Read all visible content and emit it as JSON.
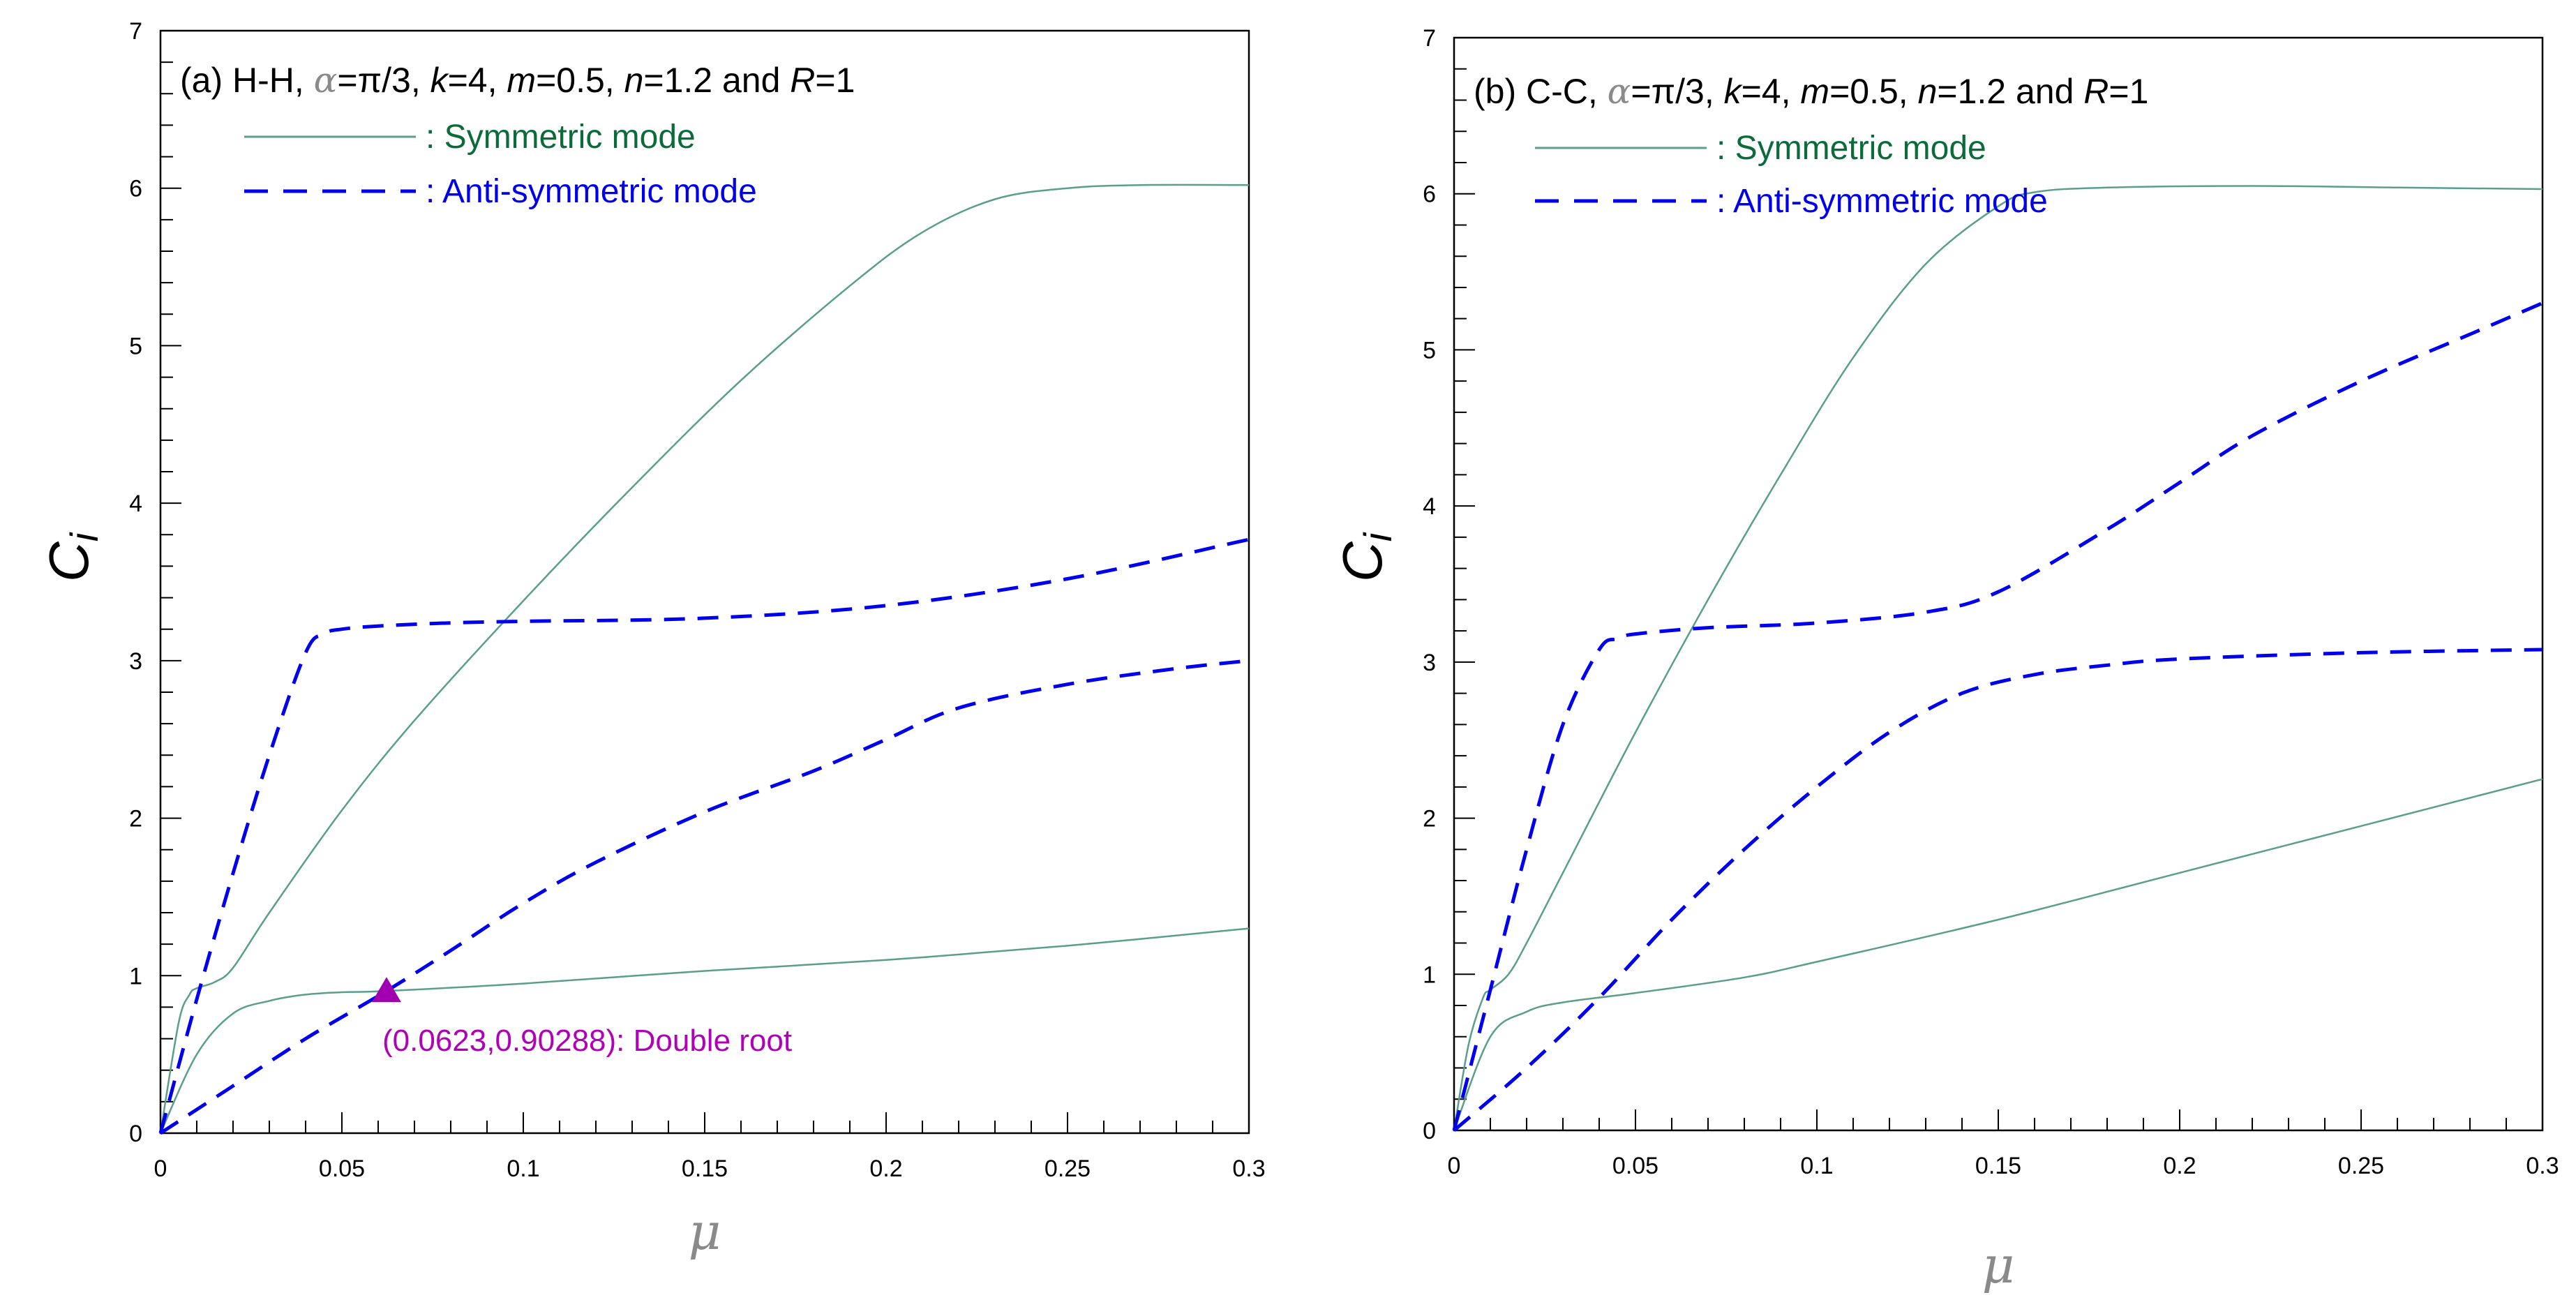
{
  "chart_data": [
    {
      "type": "line",
      "panel_label": "(a)",
      "boundary": "H-H",
      "title_parts": {
        "prefix": "(a) H-H, ",
        "alpha_sym": "α",
        "alpha_val": "=π/3, ",
        "k_sym": "k",
        "k_val": "=4, ",
        "m_sym": "m",
        "m_val": "=0.5, ",
        "n_sym": "n",
        "n_val": "=1.2 and ",
        "R_sym": "R",
        "R_val": "=1"
      },
      "xlabel": "μ",
      "ylabel_main": "C",
      "ylabel_sub": "i",
      "xlim": [
        0,
        0.3
      ],
      "ylim": [
        0,
        7
      ],
      "xticks": [
        "0",
        "0.05",
        "0.1",
        "0.15",
        "0.2",
        "0.25",
        "0.3"
      ],
      "yticks": [
        "0",
        "1",
        "2",
        "3",
        "4",
        "5",
        "6",
        "7"
      ],
      "legend": {
        "symmetric": ": Symmetric mode",
        "antisymmetric": ": Anti-symmetric mode"
      },
      "series": [
        {
          "name": "Symmetric mode (upper)",
          "style": "solid",
          "color": "#5a9e8c",
          "x": [
            0,
            0.005,
            0.008,
            0.01,
            0.015,
            0.02,
            0.03,
            0.05,
            0.07,
            0.1,
            0.13,
            0.16,
            0.19,
            0.21,
            0.23,
            0.25,
            0.27,
            0.3
          ],
          "y": [
            0,
            0.7,
            0.88,
            0.92,
            0.96,
            1.05,
            1.4,
            2.05,
            2.62,
            3.38,
            4.1,
            4.78,
            5.38,
            5.72,
            5.93,
            6.0,
            6.02,
            6.02
          ]
        },
        {
          "name": "Symmetric mode (lower)",
          "style": "solid",
          "color": "#5a9e8c",
          "x": [
            0,
            0.01,
            0.02,
            0.03,
            0.04,
            0.05,
            0.0623,
            0.1,
            0.15,
            0.2,
            0.25,
            0.3
          ],
          "y": [
            0,
            0.5,
            0.76,
            0.84,
            0.88,
            0.895,
            0.9029,
            0.95,
            1.03,
            1.1,
            1.19,
            1.3
          ]
        },
        {
          "name": "Anti-symmetric mode (upper)",
          "style": "dashed",
          "color": "#0000ee",
          "x": [
            0,
            0.01,
            0.02,
            0.03,
            0.04,
            0.045,
            0.05,
            0.06,
            0.08,
            0.1,
            0.15,
            0.2,
            0.25,
            0.3
          ],
          "y": [
            0,
            0.85,
            1.65,
            2.4,
            3.05,
            3.17,
            3.2,
            3.22,
            3.24,
            3.25,
            3.27,
            3.35,
            3.52,
            3.77
          ]
        },
        {
          "name": "Anti-symmetric mode (lower)",
          "style": "dashed",
          "color": "#0000ee",
          "x": [
            0,
            0.02,
            0.04,
            0.0623,
            0.08,
            0.1,
            0.12,
            0.15,
            0.18,
            0.2,
            0.22,
            0.25,
            0.28,
            0.3
          ],
          "y": [
            0,
            0.3,
            0.6,
            0.9029,
            1.16,
            1.46,
            1.72,
            2.04,
            2.3,
            2.5,
            2.7,
            2.85,
            2.95,
            3.0
          ]
        }
      ],
      "markers": [
        {
          "x": 0.0623,
          "y": 0.90288,
          "shape": "triangle",
          "color": "#a000b0",
          "label": "(0.0623,0.90288): Double root"
        }
      ]
    },
    {
      "type": "line",
      "panel_label": "(b)",
      "boundary": "C-C",
      "title_parts": {
        "prefix": "(b) C-C, ",
        "alpha_sym": "α",
        "alpha_val": "=π/3, ",
        "k_sym": "k",
        "k_val": "=4, ",
        "m_sym": "m",
        "m_val": "=0.5, ",
        "n_sym": "n",
        "n_val": "=1.2 and ",
        "R_sym": "R",
        "R_val": "=1"
      },
      "xlabel": "μ",
      "ylabel_main": "C",
      "ylabel_sub": "i",
      "xlim": [
        0,
        0.3
      ],
      "ylim": [
        0,
        7
      ],
      "xticks": [
        "0",
        "0.05",
        "0.1",
        "0.15",
        "0.2",
        "0.25",
        "0.3"
      ],
      "yticks": [
        "0",
        "1",
        "2",
        "3",
        "4",
        "5",
        "6",
        "7"
      ],
      "legend": {
        "symmetric": ": Symmetric mode",
        "antisymmetric": ": Anti-symmetric mode"
      },
      "series": [
        {
          "name": "Symmetric mode (upper)",
          "style": "solid",
          "color": "#5a9e8c",
          "x": [
            0,
            0.004,
            0.008,
            0.01,
            0.015,
            0.02,
            0.03,
            0.05,
            0.07,
            0.09,
            0.11,
            0.13,
            0.15,
            0.16,
            0.18,
            0.22,
            0.26,
            0.3
          ],
          "y": [
            0,
            0.55,
            0.85,
            0.9,
            1.0,
            1.2,
            1.65,
            2.55,
            3.4,
            4.2,
            4.95,
            5.55,
            5.92,
            6.01,
            6.04,
            6.05,
            6.04,
            6.03
          ]
        },
        {
          "name": "Symmetric mode (lower)",
          "style": "solid",
          "color": "#5a9e8c",
          "x": [
            0,
            0.01,
            0.02,
            0.03,
            0.05,
            0.08,
            0.1,
            0.15,
            0.2,
            0.25,
            0.3
          ],
          "y": [
            0,
            0.6,
            0.76,
            0.82,
            0.88,
            0.98,
            1.08,
            1.35,
            1.65,
            1.95,
            2.25
          ]
        },
        {
          "name": "Anti-symmetric mode (upper)",
          "style": "dashed",
          "color": "#0000ee",
          "x": [
            0,
            0.01,
            0.02,
            0.03,
            0.04,
            0.045,
            0.05,
            0.07,
            0.1,
            0.13,
            0.15,
            0.18,
            0.2,
            0.22,
            0.25,
            0.28,
            0.3
          ],
          "y": [
            0,
            0.9,
            1.8,
            2.6,
            3.08,
            3.15,
            3.18,
            3.22,
            3.25,
            3.32,
            3.45,
            3.85,
            4.15,
            4.45,
            4.8,
            5.1,
            5.3
          ]
        },
        {
          "name": "Anti-symmetric mode (lower)",
          "style": "dashed",
          "color": "#0000ee",
          "x": [
            0,
            0.02,
            0.04,
            0.06,
            0.08,
            0.1,
            0.12,
            0.14,
            0.16,
            0.18,
            0.2,
            0.25,
            0.3
          ],
          "y": [
            0,
            0.4,
            0.85,
            1.35,
            1.8,
            2.2,
            2.55,
            2.8,
            2.92,
            2.98,
            3.02,
            3.06,
            3.08
          ]
        }
      ],
      "markers": []
    }
  ]
}
